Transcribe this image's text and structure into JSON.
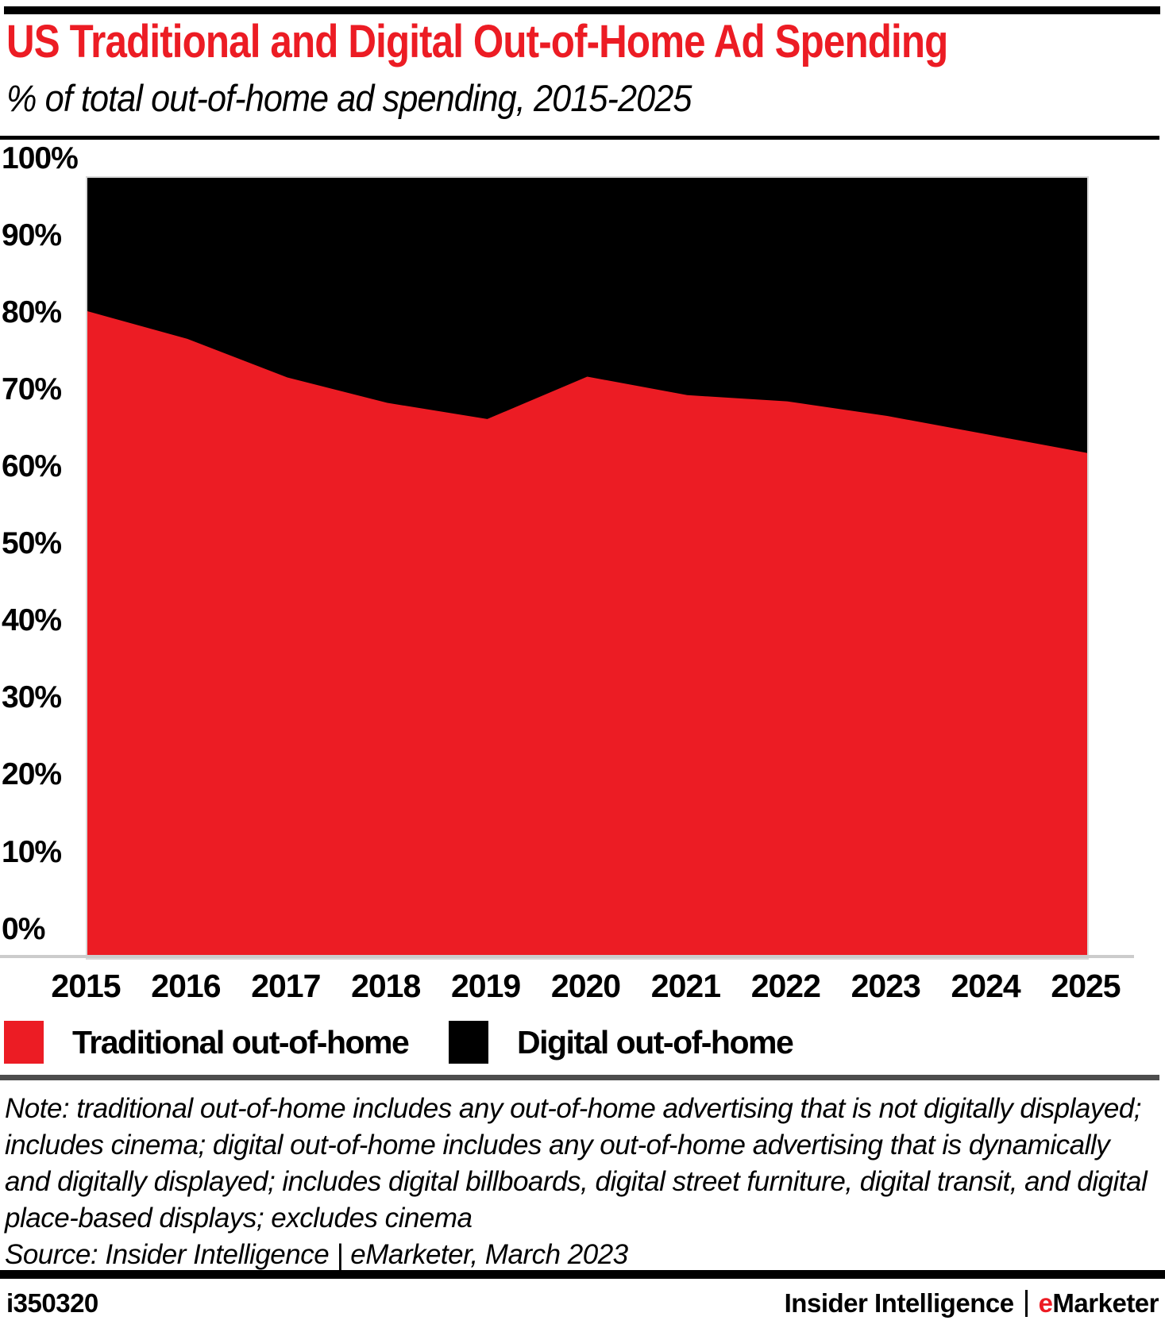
{
  "header": {
    "title": "US Traditional and Digital Out-of-Home Ad Spending",
    "subtitle": "% of total out-of-home ad spending, 2015-2025"
  },
  "chart_data": {
    "type": "area",
    "stacked": true,
    "title": "US Traditional and Digital Out-of-Home Ad Spending",
    "subtitle": "% of total out-of-home ad spending, 2015-2025",
    "categories": [
      "2015",
      "2016",
      "2017",
      "2018",
      "2019",
      "2020",
      "2021",
      "2022",
      "2023",
      "2024",
      "2025"
    ],
    "series": [
      {
        "name": "Traditional out-of-home",
        "color": "#EC1C24",
        "values": [
          80.4,
          76.8,
          71.8,
          68.5,
          66.4,
          71.9,
          69.5,
          68.7,
          66.8,
          64.4,
          62.0
        ]
      },
      {
        "name": "Digital out-of-home",
        "color": "#000000",
        "values": [
          19.6,
          23.2,
          28.2,
          31.5,
          33.6,
          28.1,
          30.5,
          31.3,
          33.2,
          35.6,
          38.0
        ]
      }
    ],
    "xlabel": "",
    "ylabel": "% of total out-of-home ad spending",
    "ylim": [
      0,
      100
    ],
    "y_tick_values": [
      100,
      90,
      80,
      70,
      60,
      50,
      40,
      30,
      20,
      10,
      0
    ],
    "y_tick_labels": [
      "100%",
      "90%",
      "80%",
      "70%",
      "60%",
      "50%",
      "40%",
      "30%",
      "20%",
      "10%",
      "0%"
    ],
    "grid": false,
    "legend_position": "bottom"
  },
  "legend": {
    "items": [
      {
        "label": "Traditional out-of-home",
        "color": "#EC1C24"
      },
      {
        "label": "Digital out-of-home",
        "color": "#000000"
      }
    ]
  },
  "note": "Note: traditional out-of-home includes any out-of-home advertising that is not digitally displayed; includes cinema; digital out-of-home includes any out-of-home advertising that is dynamically and digitally displayed; includes digital billboards, digital street furniture, digital transit, and digital place-based displays; excludes cinema",
  "source": "Source: Insider Intelligence | eMarketer, March 2023",
  "footer": {
    "chart_id": "i350320",
    "brand_left": "Insider Intelligence",
    "brand_emphasis": "e",
    "brand_rest": "Marketer"
  }
}
